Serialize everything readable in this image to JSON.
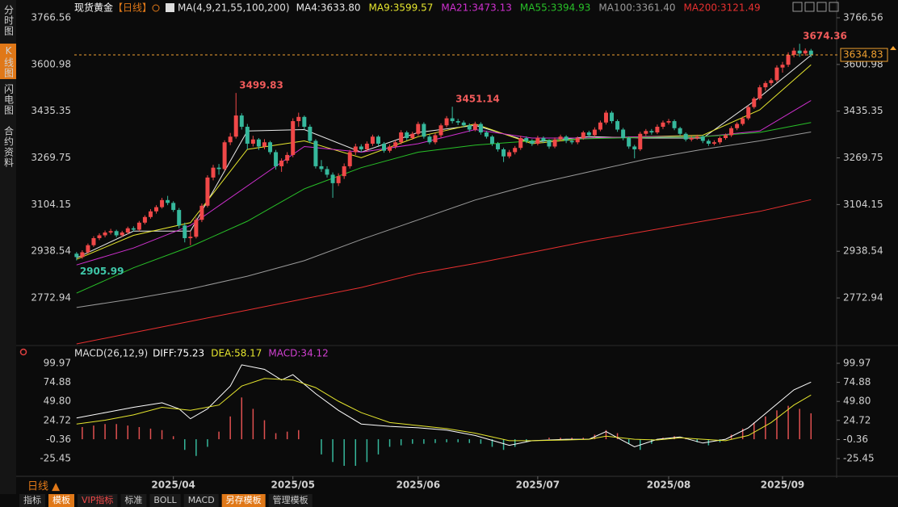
{
  "sidebar": [
    "分时图",
    "K线图",
    "闪电图",
    "合约资料"
  ],
  "toolbar": [
    "指标",
    "模板",
    "VIP指标",
    "标准",
    "BOLL",
    "MACD",
    "另存模板",
    "管理模板"
  ],
  "period_label": "日线 ▲",
  "chart_data": {
    "type": "candlestick",
    "title": "现货黄金",
    "period": "【日线】",
    "ma_label": "MA(4,9,21,55,100,200)",
    "up_color": "#f04848",
    "down_color": "#36b89c",
    "xlim": [
      -0.4,
      133.5
    ],
    "ylim": [
      2612.8,
      3795.2
    ],
    "yticks": [
      3766.56,
      3600.98,
      3435.35,
      3269.75,
      3104.15,
      2938.54,
      2772.94
    ],
    "xticks": [
      {
        "value": 17,
        "label": "2025/04"
      },
      {
        "value": 38,
        "label": "2025/05"
      },
      {
        "value": 60,
        "label": "2025/06"
      },
      {
        "value": 81,
        "label": "2025/07"
      },
      {
        "value": 104,
        "label": "2025/08"
      },
      {
        "value": 124,
        "label": "2025/09"
      }
    ],
    "last_price": 3634.83,
    "last_price_color": "#f0a030",
    "annotations": [
      3499.83,
      3451.14,
      3674.36,
      2905.99
    ],
    "candles": [
      [
        2930,
        2936,
        2905.99,
        2918
      ],
      [
        2918,
        2942,
        2912,
        2935
      ],
      [
        2935,
        2966,
        2930,
        2960
      ],
      [
        2960,
        2992,
        2954,
        2985
      ],
      [
        2985,
        3002,
        2978,
        2995
      ],
      [
        2995,
        3012,
        2988,
        3005
      ],
      [
        3005,
        3018,
        2998,
        3010
      ],
      [
        3010,
        3015,
        2988,
        2995
      ],
      [
        2995,
        3011,
        2989,
        3005
      ],
      [
        3005,
        3026,
        2999,
        3020
      ],
      [
        3020,
        3027,
        3008,
        3015
      ],
      [
        3015,
        3046,
        3010,
        3040
      ],
      [
        3040,
        3066,
        3034,
        3060
      ],
      [
        3060,
        3088,
        3054,
        3080
      ],
      [
        3080,
        3102,
        3072,
        3095
      ],
      [
        3095,
        3128,
        3090,
        3120
      ],
      [
        3120,
        3135,
        3102,
        3110
      ],
      [
        3110,
        3116,
        3078,
        3085
      ],
      [
        3085,
        3092,
        3020,
        3030
      ],
      [
        3030,
        3040,
        2970,
        2985
      ],
      [
        2985,
        3010,
        2960,
        2990
      ],
      [
        2990,
        3058,
        2984,
        3050
      ],
      [
        3050,
        3108,
        3042,
        3100
      ],
      [
        3100,
        3208,
        3094,
        3200
      ],
      [
        3200,
        3245,
        3190,
        3235
      ],
      [
        3235,
        3248,
        3210,
        3230
      ],
      [
        3230,
        3332,
        3224,
        3325
      ],
      [
        3325,
        3358,
        3315,
        3345
      ],
      [
        3345,
        3499.83,
        3338,
        3420
      ],
      [
        3420,
        3428,
        3370,
        3380
      ],
      [
        3380,
        3390,
        3300,
        3320
      ],
      [
        3320,
        3348,
        3310,
        3335
      ],
      [
        3335,
        3340,
        3298,
        3310
      ],
      [
        3310,
        3336,
        3300,
        3325
      ],
      [
        3325,
        3330,
        3282,
        3290
      ],
      [
        3290,
        3298,
        3228,
        3240
      ],
      [
        3240,
        3268,
        3220,
        3260
      ],
      [
        3260,
        3290,
        3250,
        3280
      ],
      [
        3280,
        3410,
        3272,
        3400
      ],
      [
        3400,
        3430,
        3380,
        3415
      ],
      [
        3415,
        3420,
        3370,
        3380
      ],
      [
        3380,
        3388,
        3322,
        3330
      ],
      [
        3330,
        3336,
        3232,
        3240
      ],
      [
        3240,
        3262,
        3220,
        3230
      ],
      [
        3230,
        3240,
        3200,
        3210
      ],
      [
        3210,
        3218,
        3128,
        3180
      ],
      [
        3180,
        3215,
        3170,
        3205
      ],
      [
        3205,
        3250,
        3195,
        3240
      ],
      [
        3240,
        3298,
        3232,
        3290
      ],
      [
        3290,
        3320,
        3280,
        3310
      ],
      [
        3310,
        3318,
        3290,
        3300
      ],
      [
        3300,
        3328,
        3292,
        3320
      ],
      [
        3320,
        3352,
        3312,
        3345
      ],
      [
        3345,
        3350,
        3312,
        3320
      ],
      [
        3320,
        3326,
        3288,
        3295
      ],
      [
        3295,
        3318,
        3288,
        3310
      ],
      [
        3310,
        3332,
        3302,
        3325
      ],
      [
        3325,
        3368,
        3318,
        3360
      ],
      [
        3360,
        3366,
        3332,
        3340
      ],
      [
        3340,
        3362,
        3334,
        3355
      ],
      [
        3355,
        3398,
        3348,
        3390
      ],
      [
        3390,
        3396,
        3338,
        3345
      ],
      [
        3345,
        3352,
        3318,
        3325
      ],
      [
        3325,
        3358,
        3318,
        3350
      ],
      [
        3350,
        3392,
        3342,
        3385
      ],
      [
        3385,
        3418,
        3378,
        3410
      ],
      [
        3410,
        3451.14,
        3392,
        3400
      ],
      [
        3400,
        3408,
        3386,
        3395
      ],
      [
        3395,
        3402,
        3378,
        3385
      ],
      [
        3385,
        3392,
        3362,
        3370
      ],
      [
        3370,
        3398,
        3364,
        3390
      ],
      [
        3390,
        3396,
        3352,
        3360
      ],
      [
        3360,
        3366,
        3338,
        3345
      ],
      [
        3345,
        3350,
        3312,
        3320
      ],
      [
        3320,
        3326,
        3292,
        3300
      ],
      [
        3300,
        3306,
        3255,
        3275
      ],
      [
        3275,
        3298,
        3268,
        3290
      ],
      [
        3290,
        3312,
        3282,
        3305
      ],
      [
        3305,
        3348,
        3298,
        3340
      ],
      [
        3340,
        3346,
        3322,
        3330
      ],
      [
        3330,
        3336,
        3312,
        3320
      ],
      [
        3320,
        3348,
        3314,
        3340
      ],
      [
        3340,
        3346,
        3322,
        3330
      ],
      [
        3330,
        3336,
        3302,
        3310
      ],
      [
        3310,
        3342,
        3304,
        3335
      ],
      [
        3335,
        3352,
        3328,
        3345
      ],
      [
        3345,
        3350,
        3322,
        3330
      ],
      [
        3330,
        3336,
        3318,
        3325
      ],
      [
        3325,
        3346,
        3318,
        3340
      ],
      [
        3340,
        3366,
        3334,
        3360
      ],
      [
        3360,
        3366,
        3342,
        3350
      ],
      [
        3350,
        3378,
        3344,
        3370
      ],
      [
        3370,
        3402,
        3364,
        3395
      ],
      [
        3395,
        3438,
        3388,
        3430
      ],
      [
        3430,
        3436,
        3392,
        3400
      ],
      [
        3400,
        3406,
        3362,
        3370
      ],
      [
        3370,
        3376,
        3332,
        3340
      ],
      [
        3340,
        3346,
        3302,
        3310
      ],
      [
        3310,
        3316,
        3268,
        3300
      ],
      [
        3300,
        3362,
        3294,
        3355
      ],
      [
        3355,
        3372,
        3348,
        3365
      ],
      [
        3365,
        3372,
        3352,
        3360
      ],
      [
        3360,
        3388,
        3354,
        3380
      ],
      [
        3380,
        3402,
        3372,
        3395
      ],
      [
        3395,
        3408,
        3388,
        3400
      ],
      [
        3400,
        3406,
        3368,
        3375
      ],
      [
        3375,
        3380,
        3348,
        3355
      ],
      [
        3355,
        3360,
        3328,
        3335
      ],
      [
        3335,
        3348,
        3328,
        3340
      ],
      [
        3340,
        3352,
        3334,
        3345
      ],
      [
        3345,
        3350,
        3322,
        3330
      ],
      [
        3330,
        3336,
        3312,
        3320
      ],
      [
        3320,
        3332,
        3314,
        3325
      ],
      [
        3325,
        3346,
        3318,
        3340
      ],
      [
        3340,
        3356,
        3334,
        3350
      ],
      [
        3350,
        3382,
        3344,
        3375
      ],
      [
        3375,
        3396,
        3368,
        3390
      ],
      [
        3390,
        3416,
        3384,
        3410
      ],
      [
        3410,
        3456,
        3404,
        3450
      ],
      [
        3450,
        3486,
        3444,
        3480
      ],
      [
        3480,
        3528,
        3474,
        3520
      ],
      [
        3520,
        3542,
        3508,
        3535
      ],
      [
        3535,
        3552,
        3526,
        3545
      ],
      [
        3545,
        3598,
        3538,
        3590
      ],
      [
        3590,
        3610,
        3572,
        3600
      ],
      [
        3600,
        3644,
        3592,
        3635
      ],
      [
        3635,
        3660,
        3626,
        3650
      ],
      [
        3650,
        3674.36,
        3628,
        3640
      ],
      [
        3640,
        3658,
        3632,
        3650
      ],
      [
        3650,
        3656,
        3626,
        3634.83
      ]
    ],
    "ma_series": [
      {
        "name": "MA4:3633.80",
        "color": "#e8e8e8",
        "x": [
          0,
          10,
          20,
          30,
          40,
          50,
          60,
          70,
          80,
          90,
          100,
          110,
          120,
          129
        ],
        "values": [
          2915,
          3010,
          3010,
          3365,
          3370,
          3290,
          3360,
          3385,
          3325,
          3345,
          3340,
          3340,
          3485,
          3633.8
        ]
      },
      {
        "name": "MA9:3599.57",
        "color": "#e6e62e",
        "x": [
          0,
          10,
          20,
          30,
          40,
          50,
          60,
          70,
          80,
          90,
          100,
          110,
          120,
          129
        ],
        "values": [
          2910,
          2995,
          3040,
          3300,
          3330,
          3270,
          3345,
          3390,
          3320,
          3340,
          3345,
          3350,
          3440,
          3599.57
        ]
      },
      {
        "name": "MA21:3473.13",
        "color": "#d030d0",
        "x": [
          0,
          10,
          20,
          30,
          40,
          50,
          60,
          70,
          80,
          90,
          100,
          110,
          120,
          129
        ],
        "values": [
          2890,
          2950,
          3030,
          3170,
          3310,
          3290,
          3320,
          3370,
          3340,
          3340,
          3345,
          3345,
          3365,
          3473.13
        ]
      },
      {
        "name": "MA55:3394.93",
        "color": "#28c028",
        "x": [
          0,
          10,
          20,
          30,
          40,
          50,
          60,
          70,
          80,
          90,
          100,
          110,
          120,
          129
        ],
        "values": [
          2790,
          2880,
          2955,
          3045,
          3160,
          3235,
          3290,
          3315,
          3330,
          3338,
          3342,
          3345,
          3360,
          3394.93
        ]
      },
      {
        "name": "MA100:3361.40",
        "color": "#9a9a9a",
        "x": [
          0,
          10,
          20,
          30,
          40,
          50,
          60,
          70,
          80,
          90,
          100,
          110,
          120,
          129
        ],
        "values": [
          2739,
          2770,
          2805,
          2850,
          2905,
          2980,
          3050,
          3120,
          3175,
          3220,
          3265,
          3300,
          3330,
          3361.4
        ]
      },
      {
        "name": "MA200:3121.49",
        "color": "#e83030",
        "x": [
          0,
          10,
          20,
          30,
          40,
          50,
          60,
          70,
          80,
          90,
          100,
          110,
          120,
          129
        ],
        "values": [
          2610,
          2650,
          2690,
          2730,
          2770,
          2810,
          2860,
          2895,
          2935,
          2975,
          3010,
          3045,
          3080,
          3121.49
        ]
      }
    ],
    "macd": {
      "title": "MACD(26,12,9)",
      "ylim": [
        -36.08,
        107.41
      ],
      "yticks": [
        99.97,
        74.88,
        {
          "value": 49.8,
          "label": "49.80"
        },
        24.72,
        -0.36,
        -25.45
      ],
      "series": [
        {
          "name": "DIFF:75.23",
          "color": "#ffffff",
          "x": [
            0,
            5,
            10,
            15,
            18,
            20,
            23,
            27,
            29,
            33,
            36,
            38,
            42,
            46,
            50,
            55,
            60,
            65,
            70,
            76,
            80,
            86,
            90,
            93,
            98,
            102,
            106,
            110,
            114,
            118,
            122,
            126,
            129
          ],
          "values": [
            28,
            35,
            42,
            48,
            40,
            27,
            40,
            70,
            98,
            92,
            78,
            85,
            60,
            38,
            20,
            17,
            15,
            12,
            5,
            -8,
            -2,
            0,
            0,
            10,
            -10,
            0,
            3,
            -5,
            0,
            15,
            40,
            65,
            75.23
          ]
        },
        {
          "name": "DEA:58.17",
          "color": "#e6e62e",
          "x": [
            0,
            5,
            10,
            15,
            20,
            25,
            29,
            33,
            38,
            42,
            46,
            50,
            55,
            60,
            65,
            70,
            76,
            80,
            86,
            90,
            93,
            98,
            102,
            106,
            110,
            114,
            118,
            122,
            126,
            129
          ],
          "values": [
            20,
            25,
            32,
            42,
            38,
            45,
            70,
            80,
            78,
            68,
            50,
            35,
            22,
            18,
            14,
            8,
            -2,
            -2,
            -1,
            0,
            4,
            0,
            -1,
            2,
            0,
            -2,
            5,
            22,
            45,
            58.17
          ]
        }
      ],
      "histogram": {
        "name": "MACD:34.12",
        "color": "#d040d0",
        "up_color": "#e05050",
        "down_color": "#36b89c",
        "x": [
          1,
          3,
          5,
          7,
          9,
          11,
          13,
          15,
          17,
          19,
          21,
          23,
          25,
          27,
          29,
          31,
          33,
          35,
          37,
          39,
          41,
          43,
          45,
          47,
          49,
          51,
          53,
          55,
          57,
          59,
          61,
          63,
          65,
          67,
          69,
          71,
          73,
          75,
          77,
          79,
          81,
          83,
          85,
          87,
          89,
          91,
          93,
          95,
          97,
          99,
          101,
          103,
          105,
          107,
          109,
          111,
          113,
          115,
          117,
          119,
          121,
          123,
          125,
          127,
          129
        ],
        "values": [
          16,
          18,
          20,
          20,
          18,
          16,
          14,
          12,
          4,
          -14,
          -22,
          -10,
          10,
          30,
          55,
          40,
          25,
          8,
          10,
          12,
          0,
          -20,
          -30,
          -35,
          -35,
          -30,
          -20,
          -10,
          -8,
          -6,
          -6,
          -5,
          -4,
          -4,
          -5,
          -6,
          -10,
          -14,
          -10,
          -4,
          0,
          2,
          2,
          2,
          2,
          6,
          12,
          8,
          -6,
          -14,
          -6,
          2,
          4,
          2,
          -4,
          -8,
          -4,
          6,
          14,
          22,
          30,
          38,
          44,
          40,
          34.12
        ]
      }
    }
  }
}
